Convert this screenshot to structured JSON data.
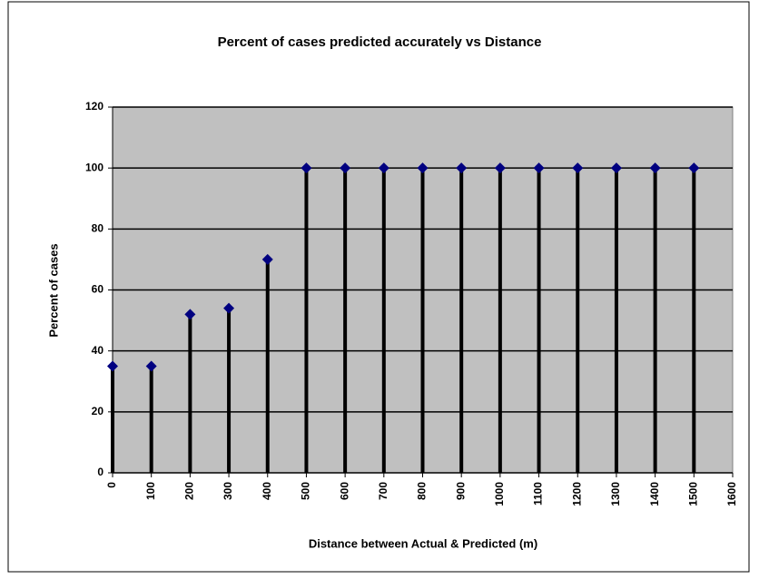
{
  "chart_data": {
    "type": "stem",
    "title": "Percent of cases predicted accurately vs Distance",
    "x_label": "Distance between Actual & Predicted (m)",
    "y_label": "Percent of cases",
    "x": [
      0,
      100,
      200,
      300,
      400,
      500,
      600,
      700,
      800,
      900,
      1000,
      1100,
      1200,
      1300,
      1400,
      1500
    ],
    "values": [
      35,
      35,
      52,
      54,
      70,
      100,
      100,
      100,
      100,
      100,
      100,
      100,
      100,
      100,
      100,
      100
    ],
    "color": "#000080",
    "line_color": "#000000",
    "plot_background": "#c0c0c0",
    "xlim": [
      0,
      1600
    ],
    "xticks": [
      0,
      100,
      200,
      300,
      400,
      500,
      600,
      700,
      800,
      900,
      1000,
      1100,
      1200,
      1300,
      1400,
      1500,
      1600
    ],
    "ylim": [
      0,
      120
    ],
    "yticks": [
      0,
      20,
      40,
      60,
      80,
      100,
      120
    ],
    "grid": true
  }
}
